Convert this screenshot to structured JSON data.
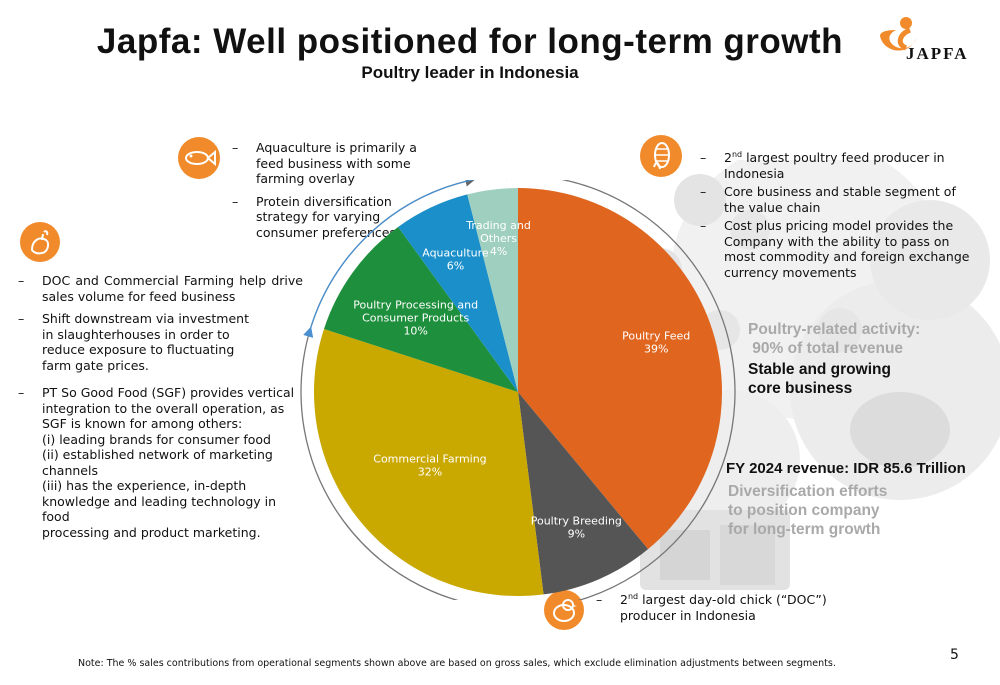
{
  "title": "Japfa: Well positioned for long-term growth",
  "subtitle": "Poultry leader in Indonesia",
  "logo": {
    "text": "JAPFA",
    "color": "#f08a2a"
  },
  "left_notes": {
    "items": [
      "DOC and Commercial Farming help drive sales volume for feed business",
      "Shift downstream via investment\nin slaughterhouses in order to\nreduce exposure to fluctuating\nfarm gate prices.",
      "PT So Good Food (SGF) provides vertical\nintegration to the overall operation, as\nSGF is known for among others:\n(i) leading brands for consumer food\n(ii) established network of marketing\nchannels\n(iii) has the experience, in-depth\nknowledge and leading technology in food\nprocessing and product marketing."
    ]
  },
  "aqua_notes": {
    "items": [
      "Aquaculture is primarily a\nfeed business with some\nfarming overlay",
      "Protein diversification\nstrategy for varying\nconsumer preferences"
    ]
  },
  "feed_notes": {
    "item1_pre": "2",
    "item1_sup": "nd",
    "item1_post": " largest poultry feed producer in\nIndonesia",
    "item2": "Core business and stable segment of\nthe value chain",
    "item3": "Cost plus pricing model provides the\nCompany with the ability to pass on\nmost commodity and foreign exchange\ncurrency movements"
  },
  "doc_note": {
    "pre": "2",
    "sup": "nd",
    "post": " largest day-old chick (“DOC”)\nproducer in Indonesia"
  },
  "right_panel": {
    "poultry_related": "Poultry-related activity:\n 90% of total revenue",
    "stable": "Stable and growing\ncore business",
    "revenue": "FY 2024 revenue: IDR 85.6 Trillion",
    "diversification": "Diversification efforts\nto position company\nfor long-term growth"
  },
  "note": "Note: The % sales contributions from operational segments shown above are based on gross sales, which exclude elimination adjustments between segments.",
  "page_number": "5",
  "icons": [
    "fish-icon",
    "rooster-icon",
    "corn-icon",
    "chick-icon"
  ],
  "chart_data": {
    "type": "pie",
    "title": "",
    "start": "12 o'clock, clockwise",
    "slices": [
      {
        "label": "Poultry Feed",
        "value": 39,
        "display": "39%",
        "color": "#e0651f"
      },
      {
        "label": "Poultry Breeding",
        "value": 9,
        "display": "9%",
        "color": "#555555"
      },
      {
        "label": "Commercial Farming",
        "value": 32,
        "display": "32%",
        "color": "#c9a800"
      },
      {
        "label": "Poultry Processing and\nConsumer Products",
        "value": 10,
        "display": "10%",
        "color": "#1e8f3c"
      },
      {
        "label": "Aquaculture",
        "value": 6,
        "display": "6%",
        "color": "#1a8fca"
      },
      {
        "label": "Trading and\nOthers",
        "value": 4,
        "display": "4%",
        "color": "#9fcfbf"
      }
    ]
  }
}
